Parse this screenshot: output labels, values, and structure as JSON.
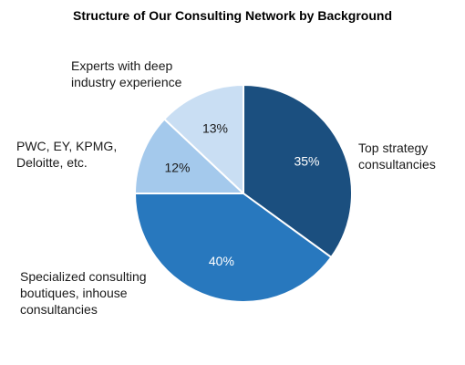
{
  "chart_data": {
    "type": "pie",
    "title": "Structure of Our Consulting Network by Background",
    "categories": [
      "Top strategy consultancies",
      "Specialized consulting boutiques, inhouse consultancies",
      "PWC, EY, KPMG, Deloitte, etc.",
      "Experts with deep industry experience"
    ],
    "values": [
      35,
      40,
      12,
      13
    ],
    "value_labels": [
      "35%",
      "40%",
      "12%",
      "13%"
    ],
    "category_label_lines": [
      [
        "Top strategy",
        "consultancies"
      ],
      [
        "Specialized consulting",
        "boutiques, inhouse",
        "consultancies"
      ],
      [
        "PWC, EY, KPMG,",
        "Deloitte, etc."
      ],
      [
        "Experts with deep",
        "industry experience"
      ]
    ],
    "colors": [
      "#1b4f7f",
      "#2878be",
      "#a4c9ec",
      "#c9def3"
    ],
    "label_colors": [
      "#ffffff",
      "#ffffff",
      "#1a1a1a",
      "#1a1a1a"
    ],
    "start": "12 o'clock",
    "direction": "clockwise",
    "legend": "none"
  }
}
